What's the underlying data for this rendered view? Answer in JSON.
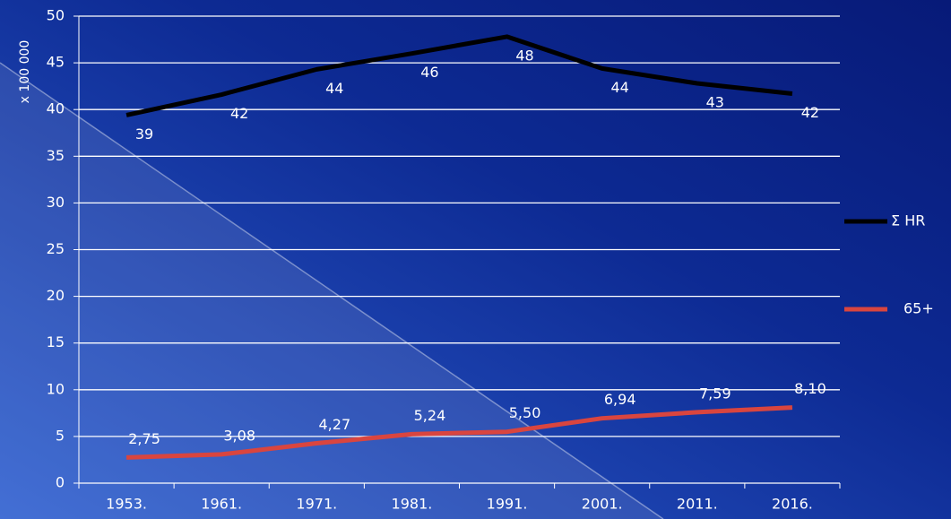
{
  "chart_data": {
    "type": "line",
    "y_label": "x 100 000",
    "categories": [
      "1953.",
      "1961.",
      "1971.",
      "1981.",
      "1991.",
      "2001.",
      "2011.",
      "2016."
    ],
    "series": [
      {
        "name": "Σ HR",
        "color": "#000000",
        "values": [
          39.4,
          41.6,
          44.3,
          46.0,
          47.8,
          44.4,
          42.8,
          41.7
        ],
        "value_labels": [
          "39",
          "42",
          "44",
          "46",
          "48",
          "44",
          "43",
          "42"
        ]
      },
      {
        "name": "65+",
        "color": "#d9453f",
        "values": [
          2.75,
          3.08,
          4.27,
          5.24,
          5.5,
          6.94,
          7.59,
          8.1
        ],
        "value_labels": [
          "2,75",
          "3,08",
          "4,27",
          "5,24",
          "5,50",
          "6,94",
          "7,59",
          "8,10"
        ]
      }
    ],
    "ylim": [
      0,
      50
    ],
    "yticks": [
      0,
      5,
      10,
      15,
      20,
      25,
      30,
      35,
      40,
      45,
      50
    ],
    "grid": true,
    "legend": "right"
  }
}
